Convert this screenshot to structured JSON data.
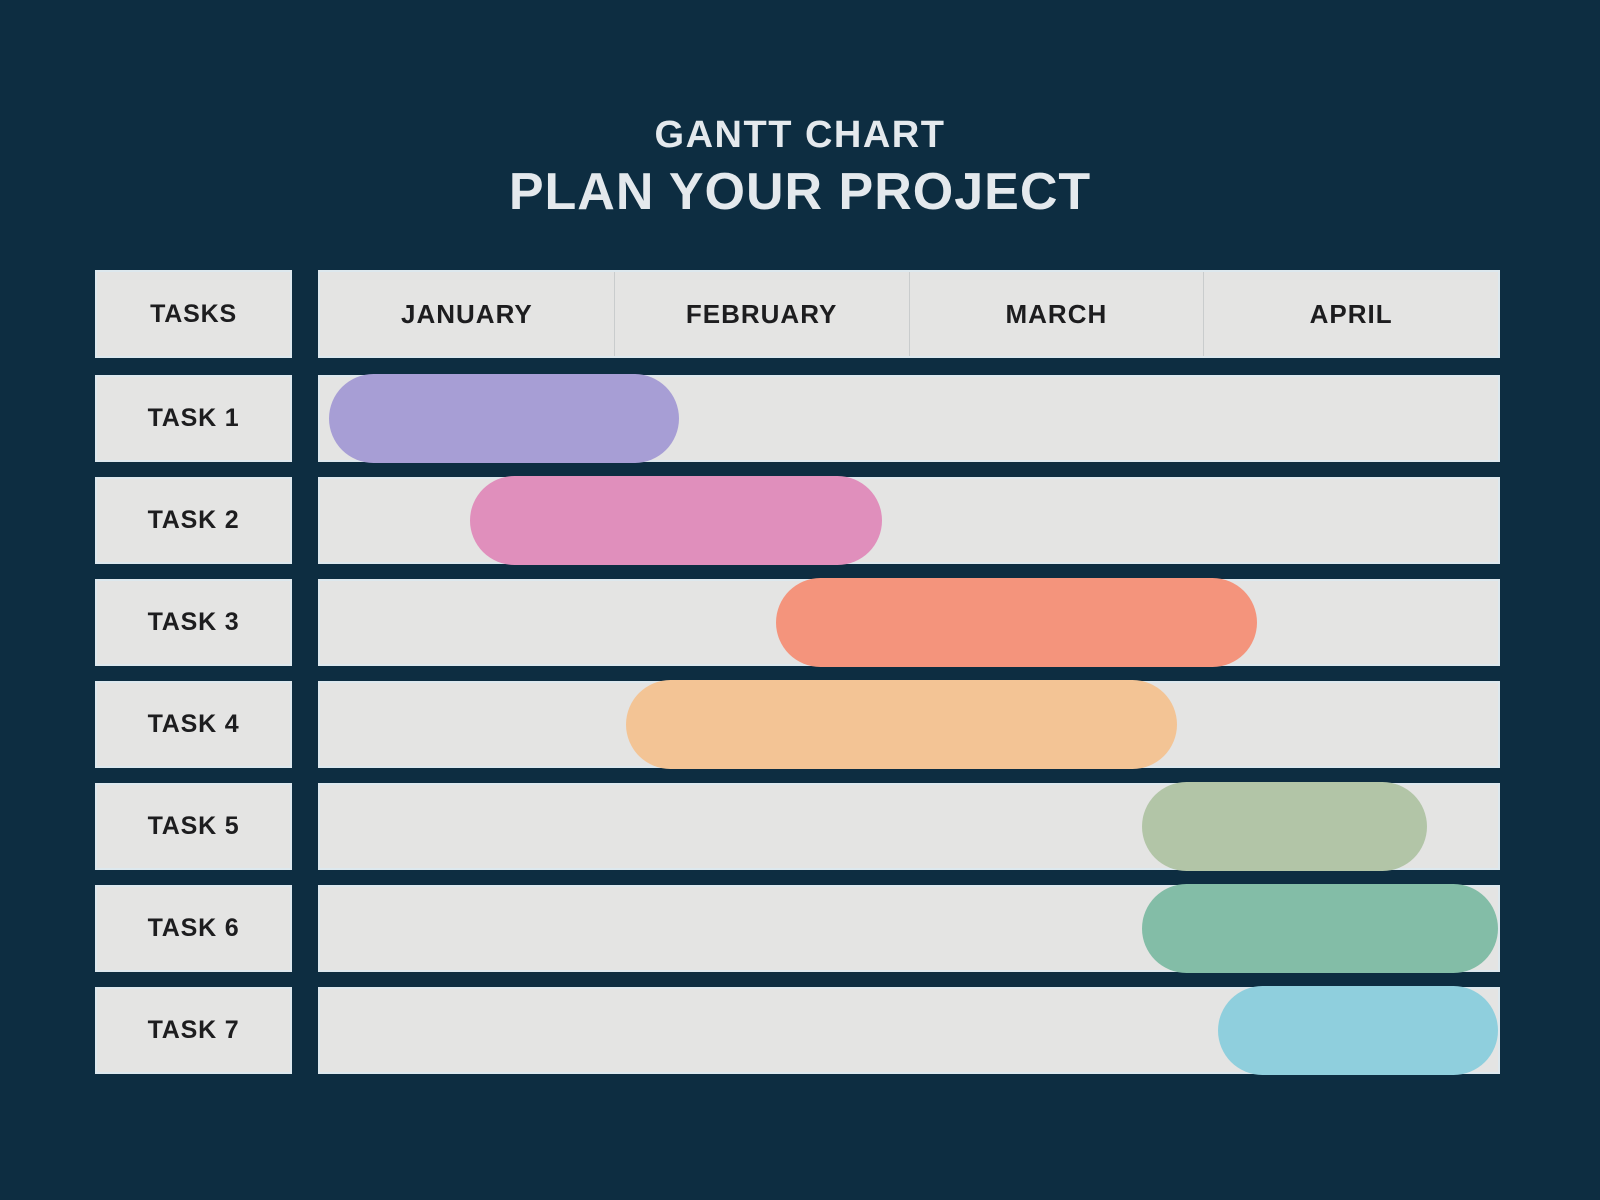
{
  "page": {
    "background_color": "#0d2d41",
    "panel_color": "#e4e4e3",
    "panel_border_color": "#dde8ee",
    "text_color": "#1d1d1f",
    "title_color": "#e4e9ed"
  },
  "header": {
    "title": "GANTT CHART",
    "subtitle": "PLAN YOUR PROJECT"
  },
  "table": {
    "tasks_header": "TASKS"
  },
  "chart_data": {
    "type": "bar",
    "variant": "gantt",
    "title": "GANTT CHART",
    "subtitle": "PLAN YOUR PROJECT",
    "months": [
      "JANUARY",
      "FEBRUARY",
      "MARCH",
      "APRIL"
    ],
    "axis": {
      "unit": "month",
      "min": 0,
      "max": 4
    },
    "legend": "none",
    "tasks": [
      {
        "label": "TASK 1",
        "start_month": 0.03,
        "end_month": 1.22,
        "color": "#a79ed5"
      },
      {
        "label": "TASK 2",
        "start_month": 0.51,
        "end_month": 1.91,
        "color": "#e08fbc"
      },
      {
        "label": "TASK 3",
        "start_month": 1.55,
        "end_month": 3.18,
        "color": "#f4947c"
      },
      {
        "label": "TASK 4",
        "start_month": 1.04,
        "end_month": 2.91,
        "color": "#f3c495"
      },
      {
        "label": "TASK 5",
        "start_month": 2.79,
        "end_month": 3.76,
        "color": "#b2c5a7"
      },
      {
        "label": "TASK 6",
        "start_month": 2.79,
        "end_month": 4.0,
        "color": "#83bda7"
      },
      {
        "label": "TASK 7",
        "start_month": 3.05,
        "end_month": 4.0,
        "color": "#8fcfdd"
      }
    ]
  }
}
